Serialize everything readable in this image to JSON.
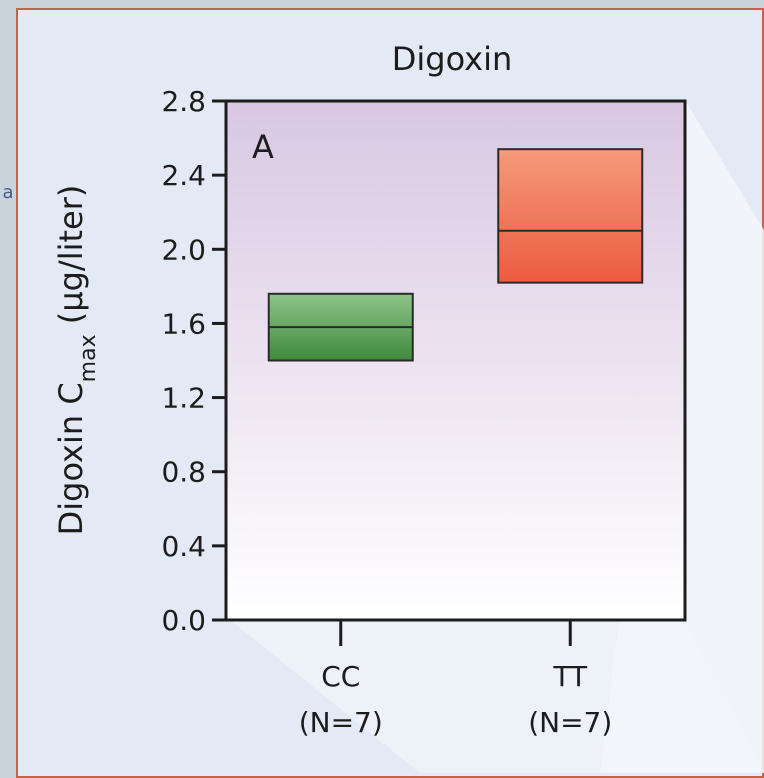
{
  "side_glyph": "a",
  "chart_data": {
    "type": "box",
    "title": "Digoxin",
    "panel_label": "A",
    "ylabel_main": "Digoxin C",
    "ylabel_sub": "max",
    "ylabel_unit": " (μg/liter)",
    "ylim": [
      0.0,
      2.8
    ],
    "yticks": [
      "0.0",
      "0.4",
      "0.8",
      "1.2",
      "1.6",
      "2.0",
      "2.4",
      "2.8"
    ],
    "grid": false,
    "legend": "none",
    "categories": [
      {
        "line1": "CC",
        "line2": "(N=7)"
      },
      {
        "line1": "TT",
        "line2": "(N=7)"
      }
    ],
    "boxes": [
      {
        "category": "CC",
        "low": 1.4,
        "median": 1.58,
        "high": 1.76,
        "color_top": "#8fc48a",
        "color_bottom": "#3f8a3d"
      },
      {
        "category": "TT",
        "low": 1.82,
        "median": 2.1,
        "high": 2.54,
        "color_top": "#f59a7a",
        "color_bottom": "#ec5b40"
      }
    ]
  },
  "colors": {
    "frame_border": "#c9614a",
    "plot_bg_top": "#d9c7e2",
    "plot_bg_bottom": "#ffffff",
    "outer_bg": "#e3eaf5"
  }
}
